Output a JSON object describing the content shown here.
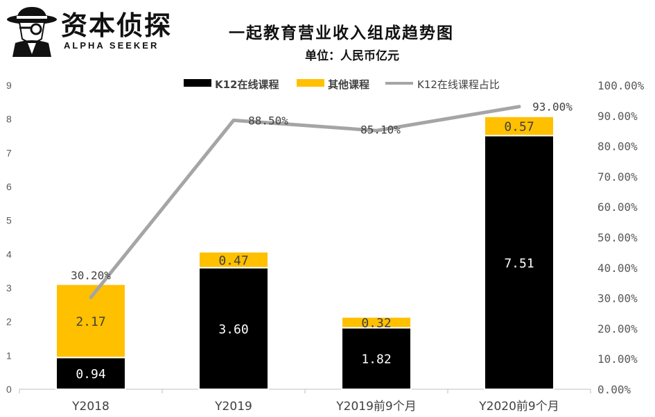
{
  "brand": {
    "name_cn": "资本侦探",
    "name_en": "ALPHA SEEKER"
  },
  "header": {
    "title": "一起教育营业收入组成趋势图",
    "unit": "单位：人民币亿元"
  },
  "chart_data": {
    "type": "bar",
    "stacked": true,
    "categories": [
      "Y2018",
      "Y2019",
      "Y2019前9个月",
      "Y2020前9个月"
    ],
    "series": [
      {
        "name": "K12在线课程",
        "values": [
          0.94,
          3.6,
          1.82,
          7.51
        ],
        "labels": [
          "0.94",
          "3.60",
          "1.82",
          "7.51"
        ],
        "color": "#000000"
      },
      {
        "name": "其他课程",
        "values": [
          2.17,
          0.47,
          0.32,
          0.57
        ],
        "labels": [
          "2.17",
          "0.47",
          "0.32",
          "0.57"
        ],
        "color": "#FFC000"
      }
    ],
    "line_series": {
      "name": "K12在线课程占比",
      "values": [
        30.2,
        88.5,
        85.1,
        93.0
      ],
      "labels": [
        "30.20%",
        "88.50%",
        "85.10%",
        "93.00%"
      ],
      "color": "#A5A5A5",
      "axis": "right"
    },
    "y_left": {
      "min": 0,
      "max": 9,
      "ticks": [
        "0",
        "1",
        "2",
        "3",
        "4",
        "5",
        "6",
        "7",
        "8",
        "9"
      ]
    },
    "y_right": {
      "min": 0,
      "max": 100,
      "ticks": [
        "0.00%",
        "10.00%",
        "20.00%",
        "30.00%",
        "40.00%",
        "50.00%",
        "60.00%",
        "70.00%",
        "80.00%",
        "90.00%",
        "100.00%"
      ]
    },
    "legend": {
      "position": "top"
    },
    "grid": false
  }
}
